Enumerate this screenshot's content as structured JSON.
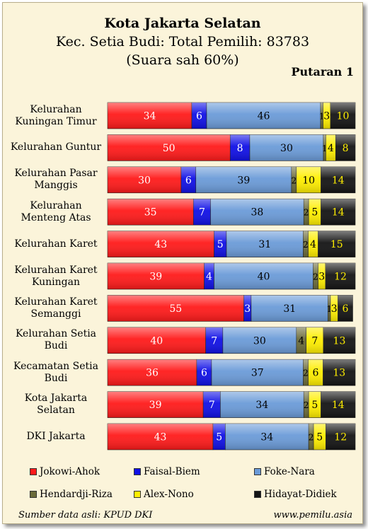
{
  "header": {
    "title": "Kota Jakarta Selatan",
    "subtitle": "Kec. Setia Budi: Total Pemilih: 83783",
    "subtitle2": "(Suara sah 60%)",
    "round": "Putaran 1"
  },
  "footer": {
    "source": "Sumber data asli: KPUD DKI",
    "site": "www.pemilu.asia"
  },
  "chart_data": {
    "type": "bar",
    "orientation": "horizontal",
    "stacked": true,
    "percent": true,
    "categories": [
      [
        "Kelurahan",
        "Kuningan Timur"
      ],
      [
        "Kelurahan Guntur"
      ],
      [
        "Kelurahan Pasar",
        "Manggis"
      ],
      [
        "Kelurahan",
        "Menteng Atas"
      ],
      [
        "Kelurahan Karet"
      ],
      [
        "Kelurahan Karet",
        "Kuningan"
      ],
      [
        "Kelurahan Karet",
        "Semanggi"
      ],
      [
        "Kelurahan Setia",
        "Budi"
      ],
      [
        "Kecamatan Setia",
        "Budi"
      ],
      [
        "Kota Jakarta",
        "Selatan"
      ],
      [
        "DKI Jakarta"
      ]
    ],
    "series": [
      {
        "name": "Jokowi-Ahok",
        "color": "#ff1a1a",
        "labelColor": "#ffffff",
        "values": [
          34,
          50,
          30,
          35,
          43,
          39,
          55,
          40,
          36,
          39,
          43
        ]
      },
      {
        "name": "Faisal-Biem",
        "color": "#1010e6",
        "labelColor": "#ffffff",
        "values": [
          6,
          8,
          6,
          7,
          5,
          4,
          3,
          7,
          6,
          7,
          5
        ]
      },
      {
        "name": "Foke-Nara",
        "color": "#6b9bd8",
        "labelColor": "#000000",
        "values": [
          46,
          30,
          39,
          38,
          31,
          40,
          31,
          30,
          37,
          34,
          34
        ]
      },
      {
        "name": "Hendardji-Riza",
        "color": "#6b6b3a",
        "labelColor": "#000000",
        "values": [
          1,
          1,
          2,
          2,
          2,
          2,
          1,
          4,
          2,
          2,
          2
        ]
      },
      {
        "name": "Alex-Nono",
        "color": "#ffee00",
        "labelColor": "#000000",
        "values": [
          3,
          4,
          10,
          5,
          4,
          3,
          3,
          7,
          6,
          5,
          5
        ]
      },
      {
        "name": "Hidayat-Didiek",
        "color": "#141414",
        "labelColor": "#ffee00",
        "values": [
          10,
          8,
          14,
          14,
          15,
          12,
          6,
          13,
          13,
          14,
          12
        ]
      }
    ],
    "xlim": [
      0,
      100
    ],
    "legend": "bottom"
  }
}
